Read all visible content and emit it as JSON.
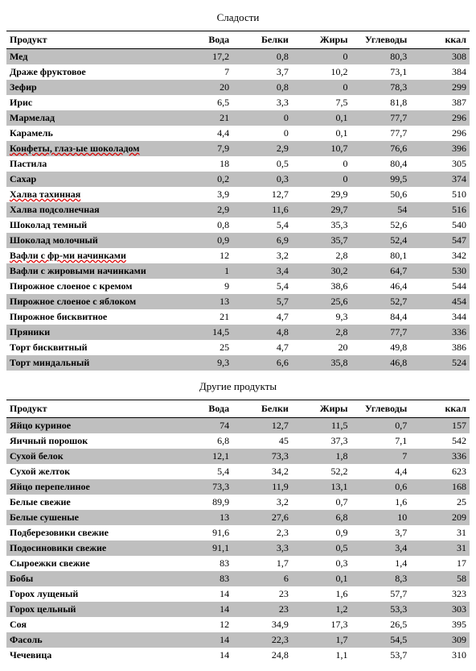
{
  "sections": [
    {
      "title": "Сладости",
      "columns": [
        "Продукт",
        "Вода",
        "Белки",
        "Жиры",
        "Углеводы",
        "ккал"
      ],
      "rows": [
        {
          "name": "Мед",
          "spell": false,
          "vals": [
            "17,2",
            "0,8",
            "0",
            "80,3",
            "308"
          ]
        },
        {
          "name": "Драже фруктовое",
          "spell": false,
          "vals": [
            "7",
            "3,7",
            "10,2",
            "73,1",
            "384"
          ]
        },
        {
          "name": "Зефир",
          "spell": false,
          "vals": [
            "20",
            "0,8",
            "0",
            "78,3",
            "299"
          ]
        },
        {
          "name": "Ирис",
          "spell": false,
          "vals": [
            "6,5",
            "3,3",
            "7,5",
            "81,8",
            "387"
          ]
        },
        {
          "name": "Мармелад",
          "spell": false,
          "vals": [
            "21",
            "0",
            "0,1",
            "77,7",
            "296"
          ]
        },
        {
          "name": "Карамель",
          "spell": false,
          "vals": [
            "4,4",
            "0",
            "0,1",
            "77,7",
            "296"
          ]
        },
        {
          "name": "Конфеты, глаз-ые шоколадом",
          "spell": true,
          "vals": [
            "7,9",
            "2,9",
            "10,7",
            "76,6",
            "396"
          ]
        },
        {
          "name": "Пастила",
          "spell": false,
          "vals": [
            "18",
            "0,5",
            "0",
            "80,4",
            "305"
          ]
        },
        {
          "name": "Сахар",
          "spell": false,
          "vals": [
            "0,2",
            "0,3",
            "0",
            "99,5",
            "374"
          ]
        },
        {
          "name": "Халва тахинная",
          "spell": true,
          "vals": [
            "3,9",
            "12,7",
            "29,9",
            "50,6",
            "510"
          ]
        },
        {
          "name": "Халва подсолнечная",
          "spell": false,
          "vals": [
            "2,9",
            "11,6",
            "29,7",
            "54",
            "516"
          ]
        },
        {
          "name": "Шоколад темный",
          "spell": false,
          "vals": [
            "0,8",
            "5,4",
            "35,3",
            "52,6",
            "540"
          ]
        },
        {
          "name": "Шоколад молочный",
          "spell": false,
          "vals": [
            "0,9",
            "6,9",
            "35,7",
            "52,4",
            "547"
          ]
        },
        {
          "name": "Вафли с фр-ми начинками",
          "spell": true,
          "vals": [
            "12",
            "3,2",
            "2,8",
            "80,1",
            "342"
          ]
        },
        {
          "name": "Вафли с жировыми начинками",
          "spell": false,
          "vals": [
            "1",
            "3,4",
            "30,2",
            "64,7",
            "530"
          ]
        },
        {
          "name": "Пирожное слоеное с кремом",
          "spell": false,
          "vals": [
            "9",
            "5,4",
            "38,6",
            "46,4",
            "544"
          ]
        },
        {
          "name": "Пирожное слоеное с яблоком",
          "spell": false,
          "vals": [
            "13",
            "5,7",
            "25,6",
            "52,7",
            "454"
          ]
        },
        {
          "name": "Пирожное бисквитное",
          "spell": false,
          "vals": [
            "21",
            "4,7",
            "9,3",
            "84,4",
            "344"
          ]
        },
        {
          "name": "Пряники",
          "spell": false,
          "vals": [
            "14,5",
            "4,8",
            "2,8",
            "77,7",
            "336"
          ]
        },
        {
          "name": "Торт бисквитный",
          "spell": false,
          "vals": [
            "25",
            "4,7",
            "20",
            "49,8",
            "386"
          ]
        },
        {
          "name": "Торт миндальный",
          "spell": false,
          "vals": [
            "9,3",
            "6,6",
            "35,8",
            "46,8",
            "524"
          ]
        }
      ]
    },
    {
      "title": "Другие продукты",
      "columns": [
        "Продукт",
        "Вода",
        "Белки",
        "Жиры",
        "Углеводы",
        "ккал"
      ],
      "rows": [
        {
          "name": "Яйцо куриное",
          "spell": false,
          "vals": [
            "74",
            "12,7",
            "11,5",
            "0,7",
            "157"
          ]
        },
        {
          "name": "Яичный порошок",
          "spell": false,
          "vals": [
            "6,8",
            "45",
            "37,3",
            "7,1",
            "542"
          ]
        },
        {
          "name": "Сухой белок",
          "spell": false,
          "vals": [
            "12,1",
            "73,3",
            "1,8",
            "7",
            "336"
          ]
        },
        {
          "name": "Сухой желток",
          "spell": false,
          "vals": [
            "5,4",
            "34,2",
            "52,2",
            "4,4",
            "623"
          ]
        },
        {
          "name": "Яйцо перепелиное",
          "spell": false,
          "vals": [
            "73,3",
            "11,9",
            "13,1",
            "0,6",
            "168"
          ]
        },
        {
          "name": "Белые свежие",
          "spell": false,
          "vals": [
            "89,9",
            "3,2",
            "0,7",
            "1,6",
            "25"
          ]
        },
        {
          "name": "Белые сушеные",
          "spell": false,
          "vals": [
            "13",
            "27,6",
            "6,8",
            "10",
            "209"
          ]
        },
        {
          "name": "Подберезовики свежие",
          "spell": false,
          "vals": [
            "91,6",
            "2,3",
            "0,9",
            "3,7",
            "31"
          ]
        },
        {
          "name": "Подосиновики свежие",
          "spell": false,
          "vals": [
            "91,1",
            "3,3",
            "0,5",
            "3,4",
            "31"
          ]
        },
        {
          "name": "Сыроежки свежие",
          "spell": false,
          "vals": [
            "83",
            "1,7",
            "0,3",
            "1,4",
            "17"
          ]
        },
        {
          "name": "Бобы",
          "spell": false,
          "vals": [
            "83",
            "6",
            "0,1",
            "8,3",
            "58"
          ]
        },
        {
          "name": "Горох лущеный",
          "spell": false,
          "vals": [
            "14",
            "23",
            "1,6",
            "57,7",
            "323"
          ]
        },
        {
          "name": "Горох цельный",
          "spell": false,
          "vals": [
            "14",
            "23",
            "1,2",
            "53,3",
            "303"
          ]
        },
        {
          "name": "Соя",
          "spell": false,
          "vals": [
            "12",
            "34,9",
            "17,3",
            "26,5",
            "395"
          ]
        },
        {
          "name": "Фасоль",
          "spell": false,
          "vals": [
            "14",
            "22,3",
            "1,7",
            "54,5",
            "309"
          ]
        },
        {
          "name": "Чечевица",
          "spell": false,
          "vals": [
            "14",
            "24,8",
            "1,1",
            "53,7",
            "310"
          ]
        }
      ]
    }
  ]
}
